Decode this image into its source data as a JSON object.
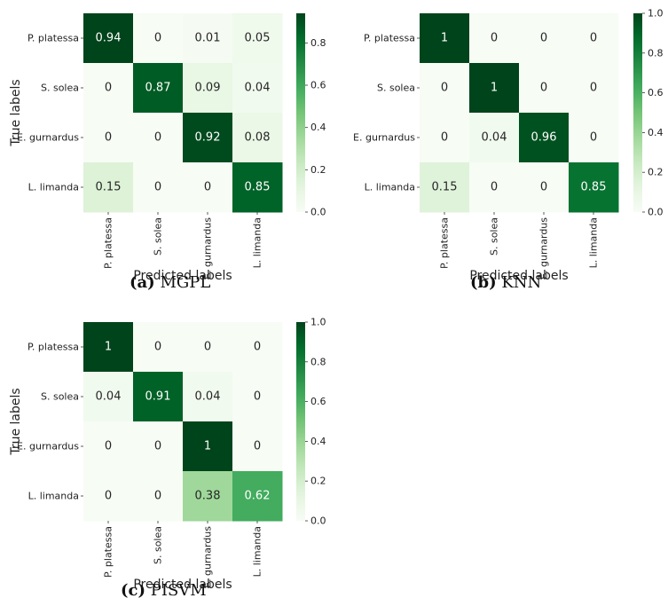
{
  "chart_data": [
    {
      "type": "heatmap",
      "caption_letter": "(a)",
      "caption_text": "MGPL",
      "rows": [
        "P. platessa",
        "S. solea",
        "E. gurnardus",
        "L. limanda"
      ],
      "cols": [
        "P. platessa",
        "S. solea",
        "E. gurnardus",
        "L. limanda"
      ],
      "values": [
        [
          0.94,
          0,
          0.01,
          0.05
        ],
        [
          0,
          0.87,
          0.09,
          0.04
        ],
        [
          0,
          0,
          0.92,
          0.08
        ],
        [
          0.15,
          0,
          0,
          0.85
        ]
      ],
      "labels": [
        [
          "0.94",
          "0",
          "0.01",
          "0.05"
        ],
        [
          "0",
          "0.87",
          "0.09",
          "0.04"
        ],
        [
          "0",
          "0",
          "0.92",
          "0.08"
        ],
        [
          "0.15",
          "0",
          "0",
          "0.85"
        ]
      ],
      "xlabel": "Predicted labels",
      "ylabel": "True labels",
      "colorbar": {
        "min": 0.0,
        "max": 0.94,
        "ticks": [
          "0.0",
          "0.2",
          "0.4",
          "0.6",
          "0.8"
        ],
        "tick_values": [
          0,
          0.2,
          0.4,
          0.6,
          0.8
        ]
      }
    },
    {
      "type": "heatmap",
      "caption_letter": "(b)",
      "caption_text": "KNN",
      "rows": [
        "P. platessa",
        "S. solea",
        "E. gurnardus",
        "L. limanda"
      ],
      "cols": [
        "P. platessa",
        "S. solea",
        "E. gurnardus",
        "L. limanda"
      ],
      "values": [
        [
          1,
          0,
          0,
          0
        ],
        [
          0,
          1,
          0,
          0
        ],
        [
          0,
          0.04,
          0.96,
          0
        ],
        [
          0.15,
          0,
          0,
          0.85
        ]
      ],
      "labels": [
        [
          "1",
          "0",
          "0",
          "0"
        ],
        [
          "0",
          "1",
          "0",
          "0"
        ],
        [
          "0",
          "0.04",
          "0.96",
          "0"
        ],
        [
          "0.15",
          "0",
          "0",
          "0.85"
        ]
      ],
      "xlabel": "Predicted labels",
      "ylabel": "",
      "colorbar": {
        "min": 0.0,
        "max": 1.0,
        "ticks": [
          "0.0",
          "0.2",
          "0.4",
          "0.6",
          "0.8",
          "1.0"
        ],
        "tick_values": [
          0,
          0.2,
          0.4,
          0.6,
          0.8,
          1.0
        ]
      }
    },
    {
      "type": "heatmap",
      "caption_letter": "(c)",
      "caption_text": "PISVM",
      "rows": [
        "P. platessa",
        "S. solea",
        "E. gurnardus",
        "L. limanda"
      ],
      "cols": [
        "P. platessa",
        "S. solea",
        "E. gurnardus",
        "L. limanda"
      ],
      "values": [
        [
          1,
          0,
          0,
          0
        ],
        [
          0.04,
          0.91,
          0.04,
          0
        ],
        [
          0,
          0,
          1,
          0
        ],
        [
          0,
          0,
          0.38,
          0.62
        ]
      ],
      "labels": [
        [
          "1",
          "0",
          "0",
          "0"
        ],
        [
          "0.04",
          "0.91",
          "0.04",
          "0"
        ],
        [
          "0",
          "0",
          "1",
          "0"
        ],
        [
          "0",
          "0",
          "0.38",
          "0.62"
        ]
      ],
      "xlabel": "Predicted labels",
      "ylabel": "True labels",
      "colorbar": {
        "min": 0.0,
        "max": 1.0,
        "ticks": [
          "0.0",
          "0.2",
          "0.4",
          "0.6",
          "0.8",
          "1.0"
        ],
        "tick_values": [
          0,
          0.2,
          0.4,
          0.6,
          0.8,
          1.0
        ]
      }
    }
  ],
  "colors": {
    "scale": [
      "#f7fcf5",
      "#e5f5e0",
      "#c7e9c0",
      "#a1d99b",
      "#74c476",
      "#41ab5d",
      "#238b45",
      "#006d2c",
      "#00441b"
    ],
    "text_dark": "#262626",
    "text_light": "#ffffff"
  }
}
